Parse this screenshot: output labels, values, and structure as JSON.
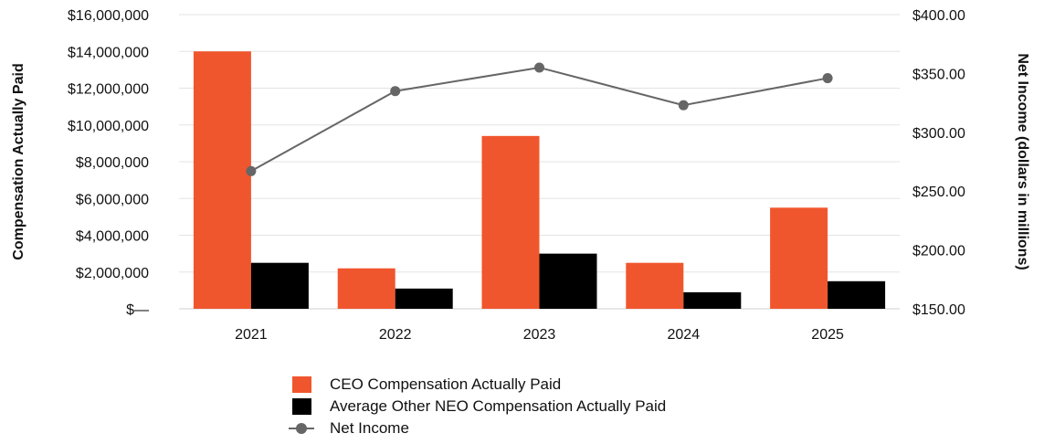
{
  "chart_data": {
    "type": "bar",
    "categories": [
      "2021",
      "2022",
      "2023",
      "2024",
      "2025"
    ],
    "series": [
      {
        "name": "CEO Compensation Actually Paid",
        "type": "bar",
        "axis": "left",
        "color": "#f0562d",
        "values": [
          14000000,
          2200000,
          9400000,
          2500000,
          5500000
        ]
      },
      {
        "name": "Average Other NEO Compensation Actually Paid",
        "type": "bar",
        "axis": "left",
        "color": "#000000",
        "values": [
          2500000,
          1100000,
          3000000,
          900000,
          1500000
        ]
      },
      {
        "name": "Net Income",
        "type": "line",
        "axis": "right",
        "color": "#666666",
        "values": [
          267,
          335,
          355,
          323,
          346
        ]
      }
    ],
    "ylabel": "Compensation Actually Paid",
    "y2label": "Net Income (dollars in millions)",
    "ylim": [
      0,
      16000000
    ],
    "y2lim": [
      150,
      400
    ],
    "yticks": [
      {
        "value": 0,
        "label": "$—"
      },
      {
        "value": 2000000,
        "label": "$2,000,000"
      },
      {
        "value": 4000000,
        "label": "$4,000,000"
      },
      {
        "value": 6000000,
        "label": "$6,000,000"
      },
      {
        "value": 8000000,
        "label": "$8,000,000"
      },
      {
        "value": 10000000,
        "label": "$10,000,000"
      },
      {
        "value": 12000000,
        "label": "$12,000,000"
      },
      {
        "value": 14000000,
        "label": "$14,000,000"
      },
      {
        "value": 16000000,
        "label": "$16,000,000"
      }
    ],
    "y2ticks": [
      {
        "value": 150,
        "label": "$150.00"
      },
      {
        "value": 200,
        "label": "$200.00"
      },
      {
        "value": 250,
        "label": "$250.00"
      },
      {
        "value": 300,
        "label": "$300.00"
      },
      {
        "value": 350,
        "label": "$350.00"
      },
      {
        "value": 400,
        "label": "$400.00"
      }
    ],
    "grid": true,
    "legend_position": "bottom"
  }
}
